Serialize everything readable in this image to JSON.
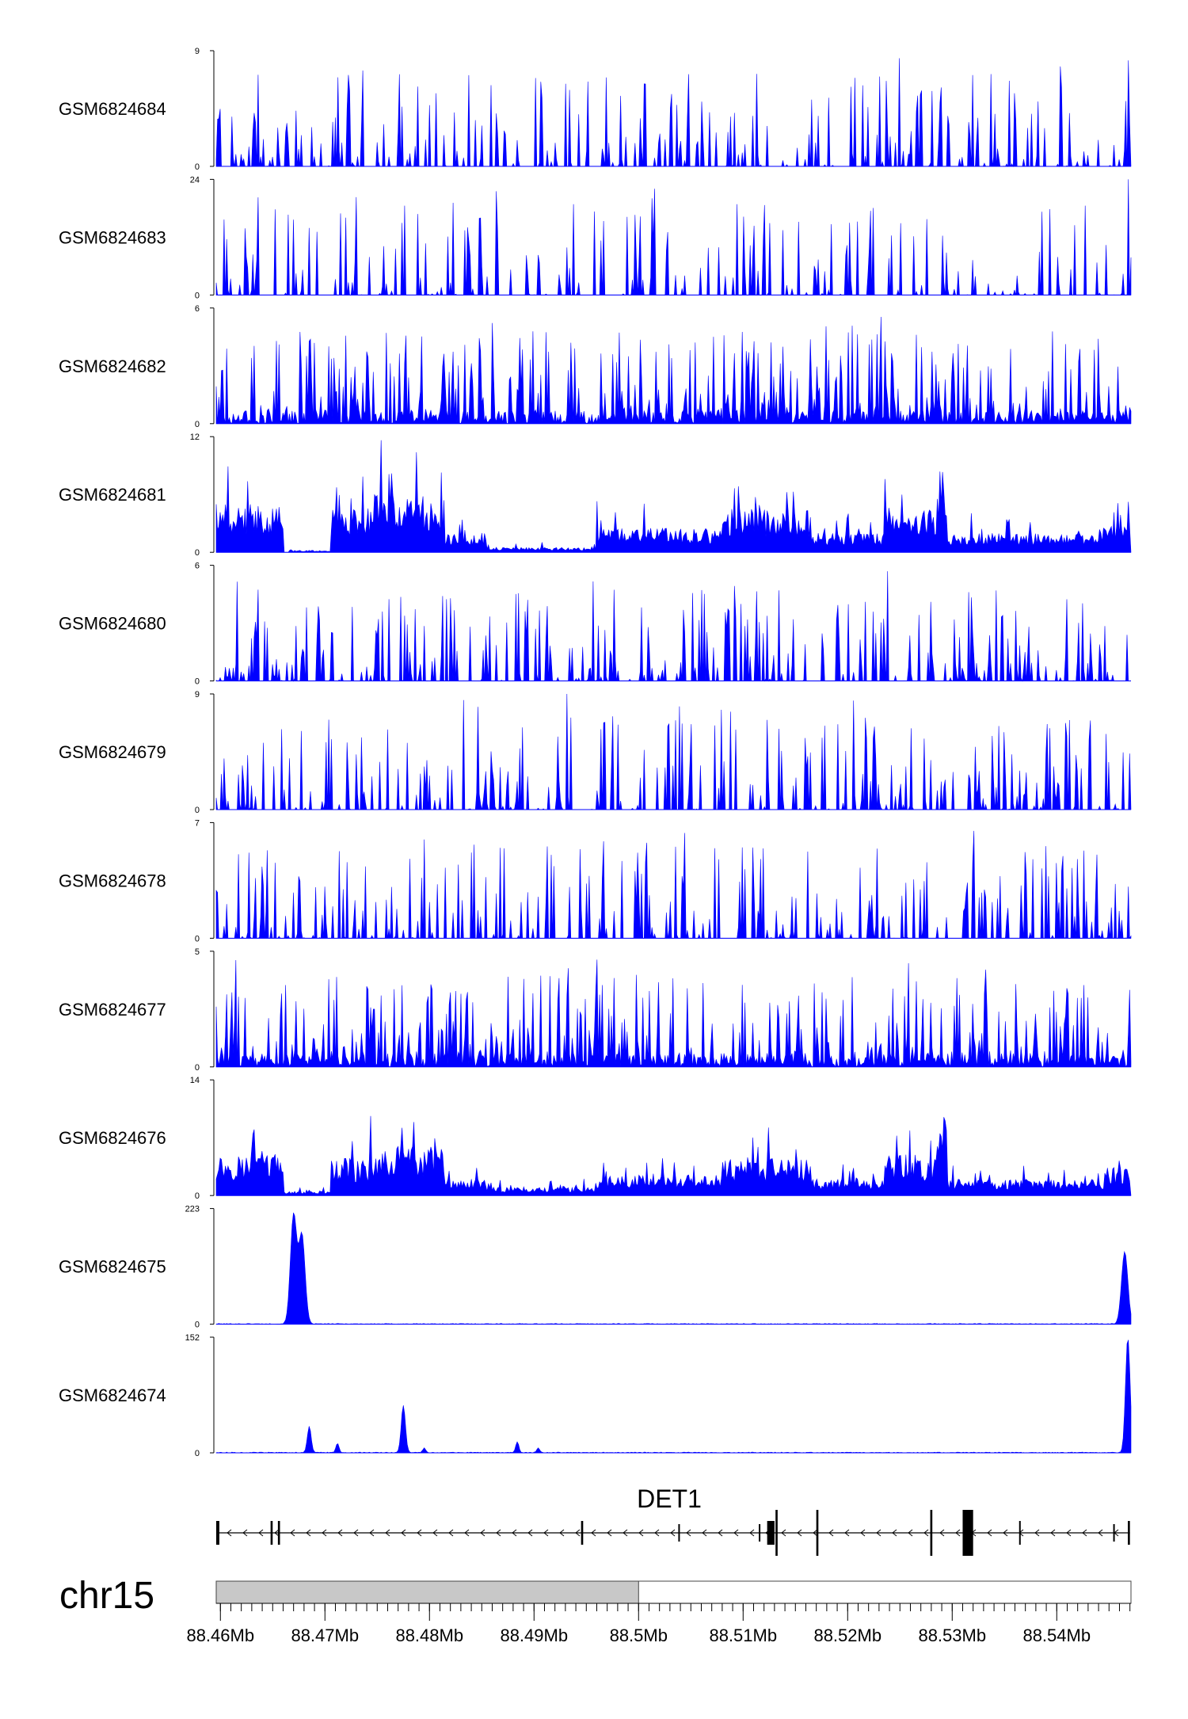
{
  "chart_data": {
    "type": "area",
    "chromosome": "chr15",
    "xlim": [
      88.4596,
      88.5471
    ],
    "x_unit": "Mb",
    "tracks": [
      {
        "name": "GSM6824684",
        "ymax": 9,
        "ymin": 0,
        "pattern": "sparse",
        "seed": 11,
        "peaks": []
      },
      {
        "name": "GSM6824683",
        "ymax": 24,
        "ymin": 0,
        "pattern": "spiky",
        "seed": 23,
        "peaks": [
          {
            "x": 88.5468,
            "y": 24
          }
        ]
      },
      {
        "name": "GSM6824682",
        "ymax": 6,
        "ymin": 0,
        "pattern": "dense",
        "seed": 37,
        "peaks": []
      },
      {
        "name": "GSM6824681",
        "ymax": 12,
        "ymin": 0,
        "pattern": "broad",
        "seed": 41,
        "regions": [
          [
            88.4596,
            88.466,
            5
          ],
          [
            88.4665,
            88.4705,
            0.2
          ],
          [
            88.4705,
            88.4745,
            4.5
          ],
          [
            88.4745,
            88.4815,
            6
          ],
          [
            88.4815,
            88.4855,
            2
          ],
          [
            88.4855,
            88.496,
            0.5
          ],
          [
            88.496,
            88.508,
            2.5
          ],
          [
            88.508,
            88.5165,
            4.5
          ],
          [
            88.5165,
            88.5235,
            2
          ],
          [
            88.5235,
            88.5285,
            4.5
          ],
          [
            88.5285,
            88.5295,
            9
          ],
          [
            88.5295,
            88.5445,
            2
          ],
          [
            88.5445,
            88.5471,
            3
          ]
        ]
      },
      {
        "name": "GSM6824680",
        "ymax": 6,
        "ymin": 0,
        "pattern": "sparse",
        "seed": 53,
        "peaks": []
      },
      {
        "name": "GSM6824679",
        "ymax": 9,
        "ymin": 0,
        "pattern": "sparse",
        "seed": 67,
        "peaks": [
          {
            "x": 88.4931,
            "y": 9
          }
        ]
      },
      {
        "name": "GSM6824678",
        "ymax": 7,
        "ymin": 0,
        "pattern": "sparse",
        "seed": 71,
        "peaks": []
      },
      {
        "name": "GSM6824677",
        "ymax": 5,
        "ymin": 0,
        "pattern": "dense",
        "seed": 83,
        "peaks": []
      },
      {
        "name": "GSM6824676",
        "ymax": 14,
        "ymin": 0,
        "pattern": "broad",
        "seed": 97,
        "regions": [
          [
            88.4596,
            88.466,
            5
          ],
          [
            88.466,
            88.4705,
            0.5
          ],
          [
            88.4705,
            88.4745,
            4.5
          ],
          [
            88.4745,
            88.4815,
            6
          ],
          [
            88.4815,
            88.4855,
            2
          ],
          [
            88.4855,
            88.496,
            1
          ],
          [
            88.496,
            88.508,
            2.5
          ],
          [
            88.508,
            88.5165,
            4.5
          ],
          [
            88.5165,
            88.5235,
            2
          ],
          [
            88.5235,
            88.5285,
            5
          ],
          [
            88.5285,
            88.5295,
            10
          ],
          [
            88.5295,
            88.5445,
            2
          ],
          [
            88.5445,
            88.5471,
            3.5
          ]
        ]
      },
      {
        "name": "GSM6824675",
        "ymax": 223,
        "ymin": 0,
        "pattern": "peaks",
        "seed": 101,
        "peaks": [
          {
            "x": 88.467,
            "y": 210,
            "w": 0.0003
          },
          {
            "x": 88.4678,
            "y": 170,
            "w": 0.0003
          },
          {
            "x": 88.5465,
            "y": 140,
            "w": 0.0003
          }
        ]
      },
      {
        "name": "GSM6824674",
        "ymax": 152,
        "ymin": 0,
        "pattern": "peaks",
        "seed": 113,
        "peaks": [
          {
            "x": 88.4685,
            "y": 35,
            "w": 0.00018
          },
          {
            "x": 88.4712,
            "y": 12,
            "w": 0.00015
          },
          {
            "x": 88.4775,
            "y": 62,
            "w": 0.0002
          },
          {
            "x": 88.4795,
            "y": 6,
            "w": 0.00015
          },
          {
            "x": 88.4884,
            "y": 14,
            "w": 0.00015
          },
          {
            "x": 88.4904,
            "y": 6,
            "w": 0.00015
          },
          {
            "x": 88.5468,
            "y": 152,
            "w": 0.00022
          }
        ]
      }
    ],
    "gene": {
      "name": "DET1",
      "strand": "-",
      "start": 88.4596,
      "end": 88.547,
      "exons": [
        {
          "x": 88.4596,
          "w": 0.0003,
          "tall": true
        },
        {
          "x": 88.4648,
          "w": 0.0002,
          "tall": true
        },
        {
          "x": 88.4655,
          "w": 0.0002,
          "tall": true
        },
        {
          "x": 88.4945,
          "w": 0.0002,
          "tall": true
        },
        {
          "x": 88.5038,
          "w": 0.0001,
          "tall": false
        },
        {
          "x": 88.5115,
          "w": 0.0001,
          "tall": false
        },
        {
          "x": 88.5123,
          "w": 0.0007,
          "tall": true
        },
        {
          "x": 88.5131,
          "w": 0.0002,
          "tall": true,
          "big": true
        },
        {
          "x": 88.517,
          "w": 0.0002,
          "tall": true,
          "big": true
        },
        {
          "x": 88.5279,
          "w": 0.0002,
          "tall": true,
          "big": true
        },
        {
          "x": 88.531,
          "w": 0.001,
          "tall": true,
          "big": true
        },
        {
          "x": 88.5364,
          "w": 0.0001,
          "tall": true
        },
        {
          "x": 88.5454,
          "w": 0.0001,
          "tall": false
        },
        {
          "x": 88.5468,
          "w": 0.0002,
          "tall": true
        }
      ]
    },
    "ideogram": {
      "highlight": [
        88.4596,
        88.5
      ]
    },
    "x_ticks": [
      {
        "x": 88.46,
        "label": "88.46Mb"
      },
      {
        "x": 88.47,
        "label": "88.47Mb"
      },
      {
        "x": 88.48,
        "label": "88.48Mb"
      },
      {
        "x": 88.49,
        "label": "88.49Mb"
      },
      {
        "x": 88.5,
        "label": "88.5Mb"
      },
      {
        "x": 88.51,
        "label": "88.51Mb"
      },
      {
        "x": 88.52,
        "label": "88.52Mb"
      },
      {
        "x": 88.53,
        "label": "88.53Mb"
      },
      {
        "x": 88.54,
        "label": "88.54Mb"
      }
    ],
    "minor_tick_step": 0.001,
    "colors": {
      "signal": "#0000ff",
      "axis": "#000000",
      "ideogram_fill": "#c8c8c8",
      "ideogram_border": "#444444"
    }
  }
}
